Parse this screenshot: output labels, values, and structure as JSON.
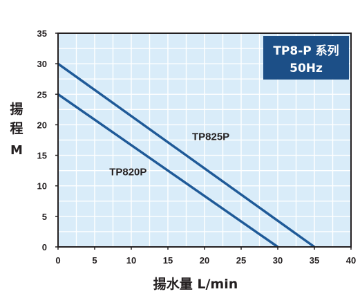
{
  "colors": {
    "plot_bg": "#d9ecf9",
    "grid": "#ffffff",
    "frame": "#231f20",
    "series": "#1f5a98",
    "badge_bg": "#1c4f87",
    "text": "#231f20"
  },
  "badge": {
    "line1": "TP8-P 系列",
    "line2": "50Hz"
  },
  "chart_data": {
    "type": "line",
    "title": "TP8-P 系列 50Hz",
    "xlabel": "揚水量 L/min",
    "ylabel": [
      "揚",
      "程",
      "M"
    ],
    "xlim": [
      0,
      40
    ],
    "ylim": [
      0,
      35
    ],
    "x_ticks": [
      0,
      5,
      10,
      15,
      20,
      25,
      30,
      35,
      40
    ],
    "y_ticks": [
      0,
      5,
      10,
      15,
      20,
      25,
      30,
      35
    ],
    "x_minor_step": 2.5,
    "y_minor_step": 2.5,
    "grid": true,
    "series": [
      {
        "name": "TP825P",
        "label": "TP825P",
        "x": [
          0,
          35
        ],
        "y": [
          30,
          0
        ],
        "label_at": [
          18.3,
          17.5
        ]
      },
      {
        "name": "TP820P",
        "label": "TP820P",
        "x": [
          0,
          30
        ],
        "y": [
          25,
          0
        ],
        "label_at": [
          7.0,
          11.7
        ]
      }
    ]
  }
}
